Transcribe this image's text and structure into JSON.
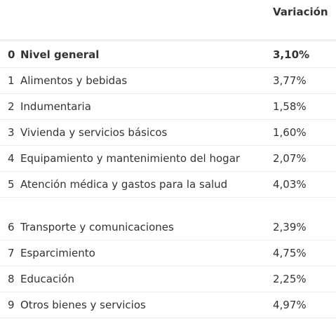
{
  "table": {
    "header": {
      "value_label": "Variación"
    },
    "rows": [
      {
        "index": "0",
        "name": "Nivel general",
        "value": "3,10%"
      },
      {
        "index": "1",
        "name": "Alimentos y bebidas",
        "value": "3,77%"
      },
      {
        "index": "2",
        "name": "Indumentaria",
        "value": "1,58%"
      },
      {
        "index": "3",
        "name": "Vivienda y servicios básicos",
        "value": "1,60%"
      },
      {
        "index": "4",
        "name": "Equipamiento y mantenimiento del hogar",
        "value": "2,07%"
      },
      {
        "index": "5",
        "name": "Atención médica y gastos para la salud",
        "value": "4,03%"
      },
      {
        "index": "6",
        "name": "Transporte y comunicaciones",
        "value": "2,39%"
      },
      {
        "index": "7",
        "name": "Esparcimiento",
        "value": "4,75%"
      },
      {
        "index": "8",
        "name": "Educación",
        "value": "2,25%"
      },
      {
        "index": "9",
        "name": "Otros bienes y servicios",
        "value": "4,97%"
      }
    ]
  }
}
